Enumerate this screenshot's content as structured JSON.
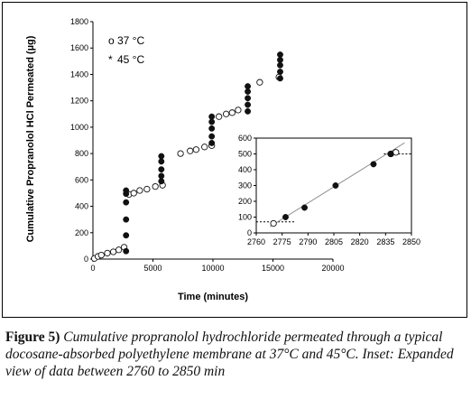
{
  "caption": {
    "label": "Figure 5)",
    "text": " Cumulative propranolol hydrochloride permeated through a typical docosane-absorbed polyethylene membrane at 37°C and 45°C. Inset: Expanded view of data between 2760 to 2850 min"
  },
  "colors": {
    "open_marker": "#ffffff",
    "filled_marker": "#111111",
    "line": "#000000",
    "inset_line": "#888888"
  },
  "chart_data": [
    {
      "type": "scatter",
      "xlabel": "Time (minutes)",
      "ylabel": "Cumulative Propranolol HCl Permeated (µg)",
      "xlim": [
        0,
        20000
      ],
      "ylim": [
        0,
        1800
      ],
      "xticks": [
        0,
        5000,
        10000,
        15000,
        20000
      ],
      "xtick_labels": [
        "0",
        "5000",
        "10000",
        "15000",
        "20000"
      ],
      "yticks": [
        0,
        200,
        400,
        600,
        800,
        1000,
        1200,
        1400,
        1600,
        1800
      ],
      "ytick_labels": [
        "0",
        "200",
        "400",
        "600",
        "800",
        "1000",
        "1200",
        "1400",
        "1600",
        "1800"
      ],
      "legend_position": "top-left",
      "series": [
        {
          "name": "37 °C",
          "marker_label": "o",
          "marker": "open",
          "x": [
            120,
            420,
            700,
            1200,
            1700,
            2150,
            2600,
            3000,
            3400,
            3900,
            4500,
            5200,
            5800,
            7300,
            8100,
            8600,
            9300,
            9900,
            10500,
            11100,
            11600,
            12100,
            13900,
            15500
          ],
          "y": [
            5,
            20,
            30,
            45,
            55,
            70,
            90,
            490,
            500,
            520,
            530,
            550,
            560,
            800,
            820,
            830,
            850,
            860,
            1080,
            1100,
            1110,
            1130,
            1340,
            1380
          ]
        },
        {
          "name": "45 °C",
          "marker_label": "*",
          "marker": "filled",
          "x": [
            2760,
            2760,
            2760,
            2760,
            2760,
            2760,
            5700,
            5700,
            5700,
            5700,
            5700,
            9900,
            9900,
            9900,
            9900,
            9900,
            12900,
            12900,
            12900,
            12900,
            12900,
            15600,
            15600,
            15600,
            15600,
            15600
          ],
          "y": [
            60,
            180,
            300,
            430,
            495,
            520,
            590,
            630,
            680,
            740,
            780,
            880,
            930,
            990,
            1040,
            1080,
            1120,
            1170,
            1220,
            1270,
            1310,
            1370,
            1420,
            1470,
            1510,
            1550
          ]
        }
      ]
    },
    {
      "type": "scatter",
      "xlim": [
        2760,
        2850
      ],
      "ylim": [
        0,
        600
      ],
      "xticks": [
        2760,
        2775,
        2790,
        2805,
        2820,
        2835,
        2850
      ],
      "xtick_labels": [
        "2760",
        "2775",
        "2790",
        "2805",
        "2820",
        "2835",
        "2850"
      ],
      "yticks": [
        0,
        100,
        200,
        300,
        400,
        500,
        600
      ],
      "ytick_labels": [
        "0",
        "100",
        "200",
        "300",
        "400",
        "500",
        "600"
      ],
      "fit_line": {
        "x": [
          2768,
          2846
        ],
        "y": [
          40,
          570
        ]
      },
      "dotted_levels": [
        {
          "y": 70,
          "x": [
            2760,
            2782
          ]
        },
        {
          "y": 500,
          "x": [
            2834,
            2850
          ]
        }
      ],
      "series": [
        {
          "name": "37 °C",
          "marker": "open",
          "x": [
            2770,
            2838,
            2841
          ],
          "y": [
            60,
            500,
            510
          ]
        },
        {
          "name": "45 °C",
          "marker": "filled",
          "x": [
            2777,
            2788,
            2806,
            2828,
            2838
          ],
          "y": [
            100,
            160,
            300,
            435,
            500
          ]
        }
      ]
    }
  ]
}
